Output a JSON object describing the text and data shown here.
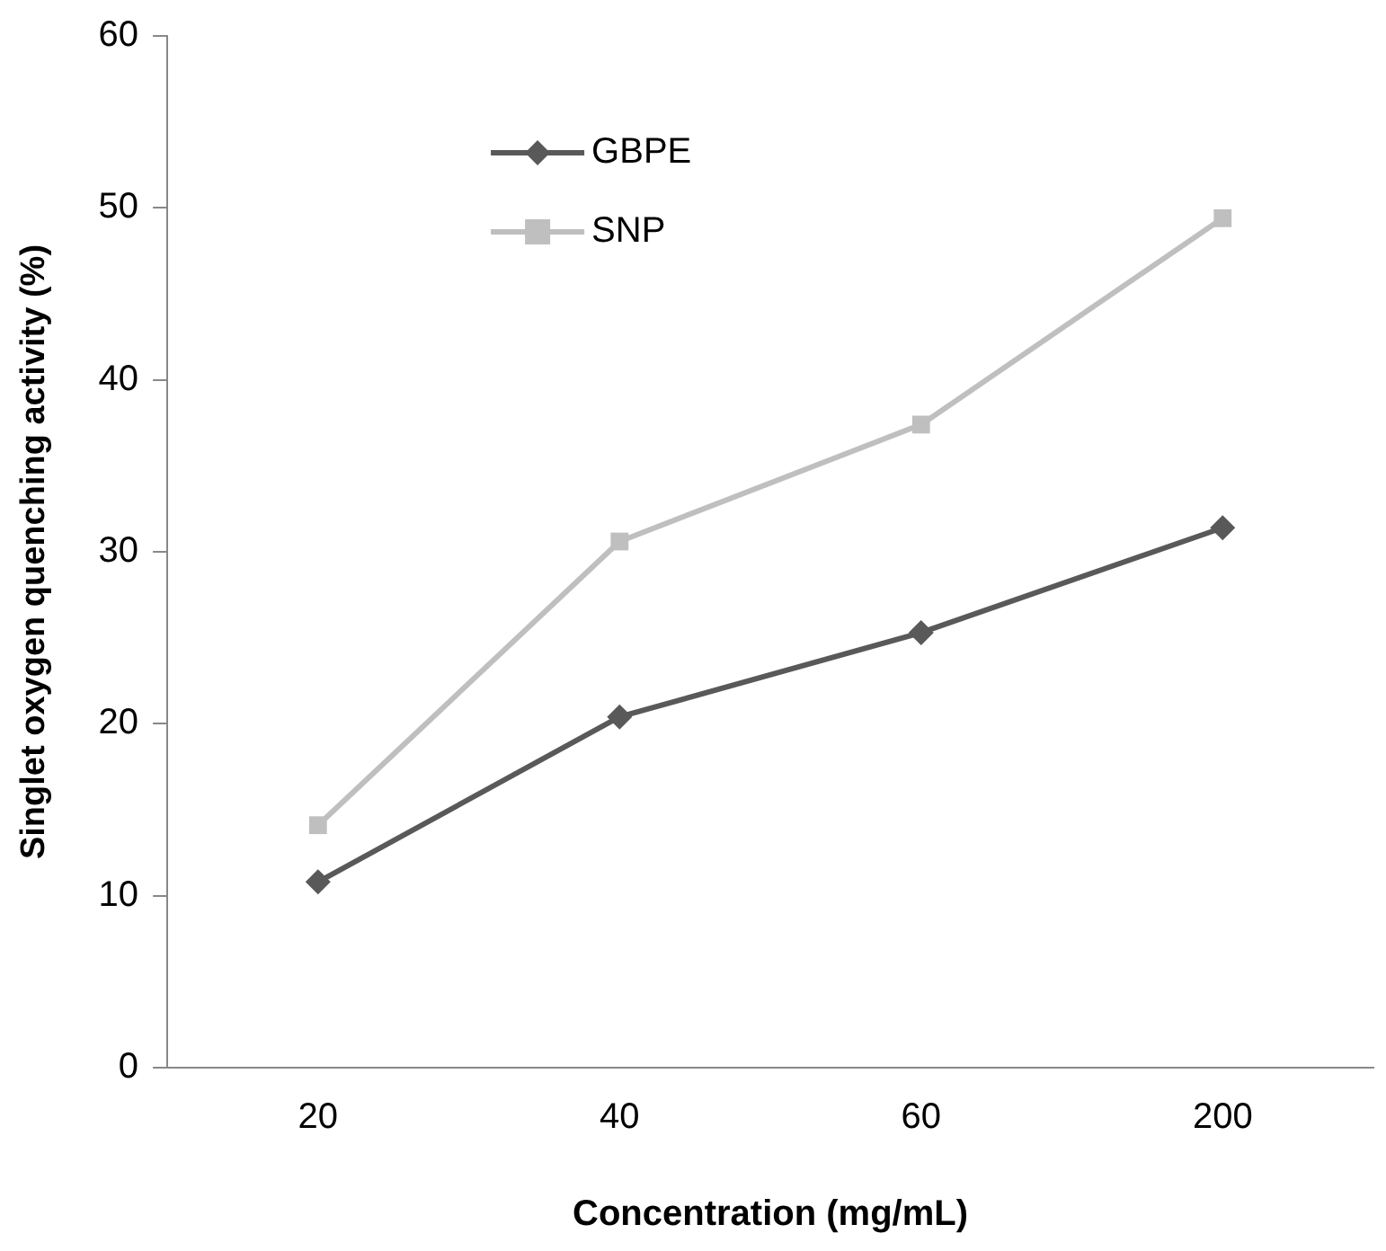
{
  "chart_data": {
    "type": "line",
    "xlabel": "Concentration (mg/mL)",
    "ylabel": "Singlet oxygen quenching activity (%)",
    "categories": [
      "20",
      "40",
      "60",
      "200"
    ],
    "series": [
      {
        "name": "GBPE",
        "color": "#595959",
        "marker": "diamond",
        "values": [
          10.8,
          20.4,
          25.3,
          31.4
        ]
      },
      {
        "name": "SNP",
        "color": "#bfbfbf",
        "marker": "square",
        "values": [
          14.1,
          30.6,
          37.4,
          49.4
        ]
      }
    ],
    "ylim": [
      0,
      60
    ],
    "yticks": [
      0,
      10,
      20,
      30,
      40,
      50,
      60
    ],
    "grid": false,
    "legend": "top left",
    "line_style": "solid"
  }
}
